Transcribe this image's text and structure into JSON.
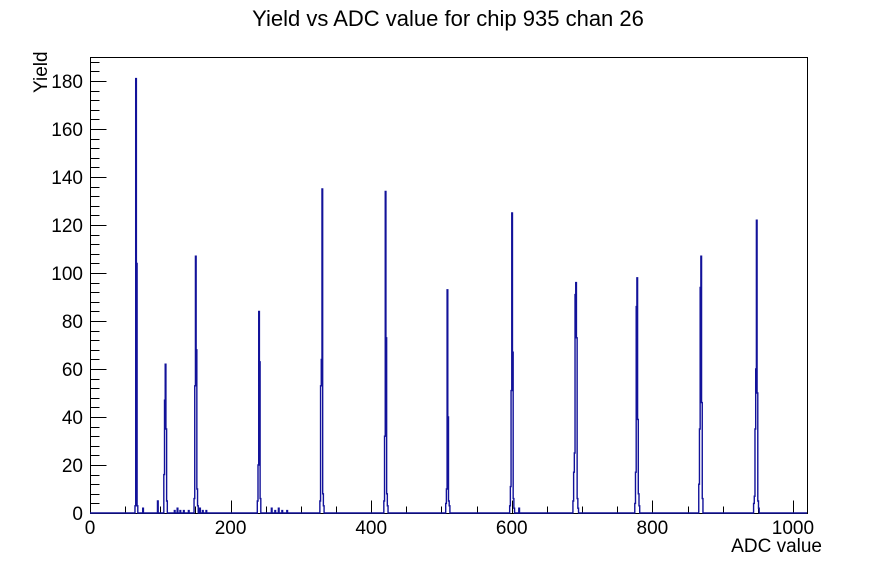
{
  "page": {
    "background": "#ffffff"
  },
  "chart_data": {
    "type": "bar",
    "subtype": "step-histogram",
    "title": "Yield vs ADC value for chip 935 chan 26",
    "xlabel": "ADC value",
    "ylabel": "Yield",
    "xlim": [
      0,
      1020
    ],
    "ylim": [
      0,
      190
    ],
    "x_major_ticks": [
      0,
      200,
      400,
      600,
      800,
      1000
    ],
    "x_minor_step": 50,
    "y_major_ticks": [
      0,
      20,
      40,
      60,
      80,
      100,
      120,
      140,
      160,
      180
    ],
    "y_minor_step": 4,
    "grid": false,
    "legend": "none",
    "line_color": "#12129a",
    "axis_color": "#000000",
    "bin_width_adc": 1,
    "bins": [
      [
        64,
        3
      ],
      [
        65,
        181
      ],
      [
        66,
        104
      ],
      [
        67,
        3
      ],
      [
        75,
        2
      ],
      [
        96,
        5
      ],
      [
        105,
        16
      ],
      [
        106,
        47
      ],
      [
        107,
        62
      ],
      [
        108,
        35
      ],
      [
        109,
        5
      ],
      [
        120,
        1
      ],
      [
        124,
        2
      ],
      [
        128,
        1
      ],
      [
        133,
        1
      ],
      [
        140,
        1
      ],
      [
        148,
        6
      ],
      [
        149,
        53
      ],
      [
        150,
        107
      ],
      [
        151,
        68
      ],
      [
        152,
        10
      ],
      [
        153,
        3
      ],
      [
        156,
        2
      ],
      [
        160,
        1
      ],
      [
        165,
        1
      ],
      [
        238,
        5
      ],
      [
        239,
        20
      ],
      [
        240,
        84
      ],
      [
        241,
        63
      ],
      [
        242,
        6
      ],
      [
        258,
        2
      ],
      [
        263,
        1
      ],
      [
        268,
        2
      ],
      [
        273,
        1
      ],
      [
        280,
        1
      ],
      [
        327,
        5
      ],
      [
        328,
        53
      ],
      [
        329,
        64
      ],
      [
        330,
        135
      ],
      [
        331,
        8
      ],
      [
        332,
        3
      ],
      [
        418,
        5
      ],
      [
        419,
        32
      ],
      [
        420,
        134
      ],
      [
        421,
        73
      ],
      [
        422,
        8
      ],
      [
        423,
        3
      ],
      [
        506,
        4
      ],
      [
        507,
        10
      ],
      [
        508,
        93
      ],
      [
        509,
        40
      ],
      [
        510,
        5
      ],
      [
        511,
        3
      ],
      [
        597,
        3
      ],
      [
        598,
        11
      ],
      [
        599,
        51
      ],
      [
        600,
        125
      ],
      [
        601,
        67
      ],
      [
        602,
        6
      ],
      [
        603,
        2
      ],
      [
        610,
        2
      ],
      [
        687,
        5
      ],
      [
        688,
        17
      ],
      [
        689,
        25
      ],
      [
        690,
        91
      ],
      [
        691,
        96
      ],
      [
        692,
        73
      ],
      [
        693,
        6
      ],
      [
        694,
        2
      ],
      [
        775,
        4
      ],
      [
        776,
        17
      ],
      [
        777,
        86
      ],
      [
        778,
        98
      ],
      [
        779,
        39
      ],
      [
        780,
        8
      ],
      [
        781,
        3
      ],
      [
        866,
        12
      ],
      [
        867,
        35
      ],
      [
        868,
        94
      ],
      [
        869,
        107
      ],
      [
        870,
        46
      ],
      [
        871,
        6
      ],
      [
        944,
        4
      ],
      [
        945,
        7
      ],
      [
        946,
        35
      ],
      [
        947,
        60
      ],
      [
        948,
        122
      ],
      [
        949,
        50
      ],
      [
        950,
        5
      ],
      [
        951,
        2
      ]
    ]
  }
}
